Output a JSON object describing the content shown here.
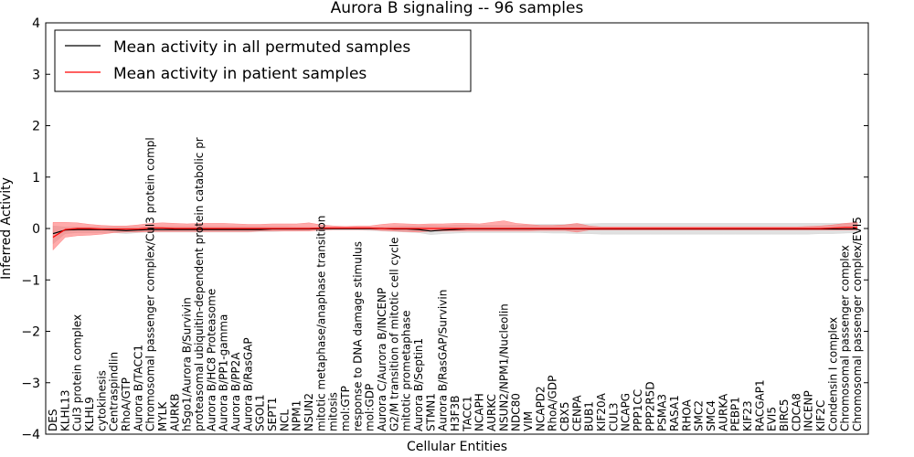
{
  "chart_data": {
    "type": "line",
    "title": "Aurora B signaling -- 96 samples",
    "xlabel": "Cellular Entities",
    "ylabel": "Inferred Activity",
    "ylim": [
      -4,
      4
    ],
    "yticks": [
      -4,
      -3,
      -2,
      -1,
      0,
      1,
      2,
      3,
      4
    ],
    "ytick_labels": [
      "−4",
      "−3",
      "−2",
      "−1",
      "0",
      "1",
      "2",
      "3",
      "4"
    ],
    "grid": false,
    "legend": {
      "placement": "top-left"
    },
    "categories": [
      "DES",
      "KLHL13",
      "Cul3 protein complex",
      "KLHL9",
      "cytokinesis",
      "Centraspindlin",
      "RhoA/GTP",
      "Aurora B/TACC1",
      "Chromosomal passenger complex/Cul3 protein compl",
      "MYLK",
      "AURKB",
      "hSgo1/Aurora B/Survivin",
      "proteasomal ubiquitin-dependent protein catabolic pr",
      "Aurora B/HC8 Proteasome",
      "Aurora B/PP1-gamma",
      "Aurora B/PP2A",
      "Aurora B/RasGAP",
      "SGOL1",
      "SEPT1",
      "NCL",
      "NPM1",
      "NSUN2",
      "mitotic metaphase/anaphase transition",
      "mitosis",
      "mol:GTP",
      "response to DNA damage stimulus",
      "mol:GDP",
      "Aurora C/Aurora B/INCENP",
      "G2/M transition of mitotic cell cycle",
      "mitotic prometaphase",
      "Aurora B/Septin1",
      "STMN1",
      "Aurora B/RasGAP/Survivin",
      "H3F3B",
      "TACC1",
      "NCAPH",
      "AURKC",
      "NSUN2/NPM1/Nucleolin",
      "NDC80",
      "VIM",
      "NCAPD2",
      "RhoA/GDP",
      "CBX5",
      "CENPA",
      "BUB1",
      "KIF20A",
      "CUL3",
      "NCAPG",
      "PPP1CC",
      "PPP2R5D",
      "PSMA3",
      "RASA1",
      "RHOA",
      "SMC2",
      "SMC4",
      "AURKA",
      "PEBP1",
      "KIF23",
      "RACGAP1",
      "EVI5",
      "BIRC5",
      "CDCA8",
      "INCENP",
      "KIF2C",
      "Condensin I complex",
      "Chromosomal passenger complex",
      "Chromosomal passenger complex/EVI5"
    ],
    "series": [
      {
        "name": "Mean activity in all permuted samples",
        "color": "#000000",
        "values": [
          -0.1,
          -0.03,
          -0.02,
          -0.02,
          -0.02,
          -0.03,
          -0.04,
          -0.03,
          -0.02,
          -0.02,
          -0.02,
          -0.02,
          -0.02,
          -0.02,
          -0.02,
          -0.02,
          -0.02,
          -0.02,
          -0.01,
          -0.01,
          -0.01,
          -0.01,
          0,
          0,
          0,
          0,
          0,
          0,
          -0.01,
          -0.01,
          -0.02,
          -0.05,
          -0.03,
          -0.02,
          -0.01,
          -0.01,
          -0.01,
          -0.01,
          -0.01,
          -0.01,
          -0.01,
          -0.01,
          -0.01,
          -0.01,
          -0.01,
          -0.01,
          -0.01,
          -0.01,
          -0.01,
          -0.01,
          -0.01,
          -0.01,
          -0.01,
          -0.01,
          -0.01,
          -0.01,
          -0.01,
          -0.01,
          -0.01,
          -0.01,
          -0.01,
          -0.01,
          -0.01,
          -0.01,
          -0.01,
          -0.01,
          -0.01
        ],
        "band_upper": [
          0.05,
          0.03,
          0.03,
          0.03,
          0.03,
          0.03,
          0.03,
          0.03,
          0.04,
          0.04,
          0.04,
          0.04,
          0.04,
          0.04,
          0.04,
          0.04,
          0.04,
          0.04,
          0.04,
          0.04,
          0.03,
          0.03,
          0.02,
          0.02,
          0.02,
          0.02,
          0.02,
          0.03,
          0.04,
          0.05,
          0.05,
          0.06,
          0.05,
          0.06,
          0.06,
          0.06,
          0.06,
          0.06,
          0.06,
          0.07,
          0.08,
          0.08,
          0.08,
          0.09,
          0.09,
          0.1,
          0.1,
          0.1,
          0.1,
          0.1,
          0.1,
          0.1,
          0.1,
          0.1,
          0.1,
          0.1,
          0.1,
          0.1,
          0.1,
          0.1,
          0.1,
          0.1,
          0.1,
          0.1,
          0.1,
          0.1,
          0.1
        ],
        "band_lower": [
          -0.3,
          -0.1,
          -0.08,
          -0.08,
          -0.08,
          -0.08,
          -0.1,
          -0.08,
          -0.07,
          -0.07,
          -0.07,
          -0.07,
          -0.07,
          -0.07,
          -0.07,
          -0.07,
          -0.07,
          -0.06,
          -0.06,
          -0.05,
          -0.05,
          -0.04,
          -0.03,
          -0.03,
          -0.03,
          -0.03,
          -0.04,
          -0.05,
          -0.06,
          -0.07,
          -0.08,
          -0.12,
          -0.1,
          -0.09,
          -0.08,
          -0.08,
          -0.08,
          -0.08,
          -0.08,
          -0.08,
          -0.08,
          -0.09,
          -0.09,
          -0.1,
          -0.1,
          -0.11,
          -0.11,
          -0.11,
          -0.11,
          -0.11,
          -0.11,
          -0.11,
          -0.11,
          -0.11,
          -0.11,
          -0.11,
          -0.11,
          -0.11,
          -0.11,
          -0.11,
          -0.11,
          -0.11,
          -0.11,
          -0.1,
          -0.1,
          -0.09,
          -0.08
        ],
        "band_color": "#cccccc"
      },
      {
        "name": "Mean activity in patient samples",
        "color": "#ff0000",
        "values": [
          -0.17,
          -0.02,
          0,
          0,
          -0.01,
          -0.01,
          -0.01,
          -0.01,
          0.01,
          0.01,
          0,
          0,
          0,
          0,
          0,
          0,
          0,
          0,
          0,
          0,
          0,
          0,
          0.01,
          0.01,
          0.01,
          0.01,
          0.01,
          0,
          0,
          0,
          0,
          0,
          0,
          0,
          0,
          0,
          0,
          0,
          0,
          0,
          0,
          0,
          0,
          0,
          0,
          0,
          0,
          0,
          0,
          0,
          0,
          0,
          0,
          0,
          0,
          0,
          0,
          0,
          0,
          0,
          0,
          0,
          0,
          0,
          0.01,
          0.02,
          0.02
        ],
        "band_upper": [
          0.12,
          0.12,
          0.11,
          0.08,
          0.06,
          0.05,
          0.05,
          0.07,
          0.1,
          0.11,
          0.1,
          0.09,
          0.1,
          0.1,
          0.1,
          0.09,
          0.08,
          0.08,
          0.09,
          0.09,
          0.09,
          0.11,
          0.07,
          0.05,
          0.04,
          0.05,
          0.05,
          0.08,
          0.1,
          0.09,
          0.08,
          0.09,
          0.09,
          0.1,
          0.1,
          0.09,
          0.12,
          0.15,
          0.1,
          0.08,
          0.06,
          0.06,
          0.07,
          0.1,
          0.05,
          0.03,
          0.03,
          0.03,
          0.03,
          0.03,
          0.03,
          0.03,
          0.03,
          0.03,
          0.03,
          0.03,
          0.03,
          0.03,
          0.03,
          0.03,
          0.03,
          0.03,
          0.04,
          0.05,
          0.07,
          0.1,
          0.12
        ],
        "band_lower": [
          -0.42,
          -0.17,
          -0.14,
          -0.13,
          -0.11,
          -0.08,
          -0.07,
          -0.07,
          -0.06,
          -0.06,
          -0.06,
          -0.06,
          -0.06,
          -0.06,
          -0.06,
          -0.06,
          -0.06,
          -0.05,
          -0.05,
          -0.05,
          -0.05,
          -0.05,
          -0.03,
          -0.02,
          -0.02,
          -0.02,
          -0.02,
          -0.04,
          -0.05,
          -0.06,
          -0.07,
          -0.05,
          -0.05,
          -0.05,
          -0.05,
          -0.05,
          -0.05,
          -0.05,
          -0.05,
          -0.05,
          -0.04,
          -0.04,
          -0.04,
          -0.07,
          -0.03,
          -0.03,
          -0.03,
          -0.03,
          -0.03,
          -0.03,
          -0.03,
          -0.03,
          -0.03,
          -0.03,
          -0.03,
          -0.03,
          -0.03,
          -0.03,
          -0.03,
          -0.03,
          -0.03,
          -0.03,
          -0.03,
          -0.03,
          -0.03,
          -0.03,
          -0.03
        ],
        "band_color": "#ff6666"
      }
    ]
  }
}
